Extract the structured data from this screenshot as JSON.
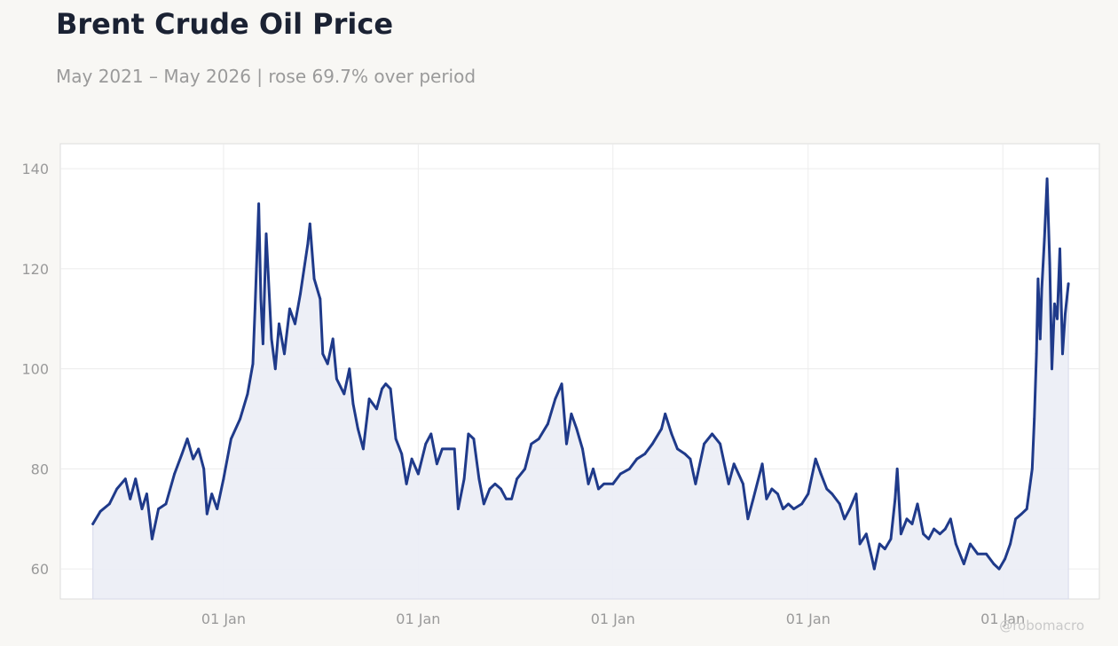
{
  "title": "Brent Crude Oil Price",
  "subtitle": "May 2021 – May 2026 | rose 69.7% over period",
  "watermark": "@robomacro",
  "colors": {
    "line": "#1f3a8a",
    "fill": "#eceef6",
    "background": "#f8f7f4",
    "grid": "#ececec"
  },
  "chart_data": {
    "type": "area",
    "title": "Brent Crude Oil Price",
    "xlabel": "",
    "ylabel": "",
    "xlim": [
      "2021-03-01",
      "2026-07-01"
    ],
    "ylim": [
      54,
      145
    ],
    "grid": true,
    "legend": "none",
    "y_ticks": [
      60,
      80,
      100,
      120,
      140
    ],
    "x_ticks": [
      {
        "date": "2022-01-01",
        "label": "01 Jan"
      },
      {
        "date": "2023-01-01",
        "label": "01 Jan"
      },
      {
        "date": "2024-01-01",
        "label": "01 Jan"
      },
      {
        "date": "2025-01-01",
        "label": "01 Jan"
      },
      {
        "date": "2026-01-01",
        "label": "01 Jan"
      }
    ],
    "series": [
      {
        "name": "",
        "points": [
          [
            "2021-05-01",
            69
          ],
          [
            "2021-05-15",
            71.5
          ],
          [
            "2021-06-01",
            73
          ],
          [
            "2021-06-15",
            76
          ],
          [
            "2021-07-01",
            78
          ],
          [
            "2021-07-10",
            74
          ],
          [
            "2021-07-20",
            78
          ],
          [
            "2021-08-01",
            72
          ],
          [
            "2021-08-10",
            75
          ],
          [
            "2021-08-20",
            66
          ],
          [
            "2021-09-01",
            72
          ],
          [
            "2021-09-15",
            73
          ],
          [
            "2021-10-01",
            79
          ],
          [
            "2021-10-15",
            83
          ],
          [
            "2021-10-25",
            86
          ],
          [
            "2021-11-05",
            82
          ],
          [
            "2021-11-15",
            84
          ],
          [
            "2021-11-25",
            80
          ],
          [
            "2021-12-01",
            71
          ],
          [
            "2021-12-10",
            75
          ],
          [
            "2021-12-20",
            72
          ],
          [
            "2022-01-01",
            78
          ],
          [
            "2022-01-15",
            86
          ],
          [
            "2022-02-01",
            90
          ],
          [
            "2022-02-15",
            95
          ],
          [
            "2022-02-25",
            101
          ],
          [
            "2022-03-01",
            112
          ],
          [
            "2022-03-08",
            133
          ],
          [
            "2022-03-12",
            114
          ],
          [
            "2022-03-16",
            105
          ],
          [
            "2022-03-22",
            127
          ],
          [
            "2022-04-01",
            106
          ],
          [
            "2022-04-08",
            100
          ],
          [
            "2022-04-15",
            109
          ],
          [
            "2022-04-25",
            103
          ],
          [
            "2022-05-05",
            112
          ],
          [
            "2022-05-15",
            109
          ],
          [
            "2022-05-25",
            115
          ],
          [
            "2022-06-01",
            120
          ],
          [
            "2022-06-08",
            125
          ],
          [
            "2022-06-12",
            129
          ],
          [
            "2022-06-20",
            118
          ],
          [
            "2022-07-01",
            114
          ],
          [
            "2022-07-06",
            103
          ],
          [
            "2022-07-15",
            101
          ],
          [
            "2022-07-25",
            106
          ],
          [
            "2022-08-01",
            98
          ],
          [
            "2022-08-15",
            95
          ],
          [
            "2022-08-25",
            100
          ],
          [
            "2022-09-01",
            93
          ],
          [
            "2022-09-10",
            88
          ],
          [
            "2022-09-20",
            84
          ],
          [
            "2022-10-01",
            94
          ],
          [
            "2022-10-15",
            92
          ],
          [
            "2022-10-25",
            96
          ],
          [
            "2022-11-01",
            97
          ],
          [
            "2022-11-10",
            96
          ],
          [
            "2022-11-20",
            86
          ],
          [
            "2022-12-01",
            83
          ],
          [
            "2022-12-10",
            77
          ],
          [
            "2022-12-20",
            82
          ],
          [
            "2023-01-01",
            79
          ],
          [
            "2023-01-15",
            85
          ],
          [
            "2023-01-25",
            87
          ],
          [
            "2023-02-05",
            81
          ],
          [
            "2023-02-15",
            84
          ],
          [
            "2023-03-01",
            84
          ],
          [
            "2023-03-10",
            84
          ],
          [
            "2023-03-17",
            72
          ],
          [
            "2023-03-28",
            78
          ],
          [
            "2023-04-05",
            87
          ],
          [
            "2023-04-15",
            86
          ],
          [
            "2023-04-25",
            78
          ],
          [
            "2023-05-04",
            73
          ],
          [
            "2023-05-15",
            76
          ],
          [
            "2023-05-25",
            77
          ],
          [
            "2023-06-05",
            76
          ],
          [
            "2023-06-15",
            74
          ],
          [
            "2023-06-25",
            74
          ],
          [
            "2023-07-05",
            78
          ],
          [
            "2023-07-20",
            80
          ],
          [
            "2023-08-01",
            85
          ],
          [
            "2023-08-15",
            86
          ],
          [
            "2023-09-01",
            89
          ],
          [
            "2023-09-15",
            94
          ],
          [
            "2023-09-27",
            97
          ],
          [
            "2023-10-06",
            85
          ],
          [
            "2023-10-15",
            91
          ],
          [
            "2023-10-25",
            88
          ],
          [
            "2023-11-05",
            84
          ],
          [
            "2023-11-16",
            77
          ],
          [
            "2023-11-25",
            80
          ],
          [
            "2023-12-05",
            76
          ],
          [
            "2023-12-15",
            77
          ],
          [
            "2024-01-01",
            77
          ],
          [
            "2024-01-15",
            79
          ],
          [
            "2024-02-01",
            80
          ],
          [
            "2024-02-15",
            82
          ],
          [
            "2024-03-01",
            83
          ],
          [
            "2024-03-15",
            85
          ],
          [
            "2024-04-01",
            88
          ],
          [
            "2024-04-08",
            91
          ],
          [
            "2024-04-20",
            87
          ],
          [
            "2024-05-01",
            84
          ],
          [
            "2024-05-15",
            83
          ],
          [
            "2024-05-25",
            82
          ],
          [
            "2024-06-04",
            77
          ],
          [
            "2024-06-20",
            85
          ],
          [
            "2024-07-05",
            87
          ],
          [
            "2024-07-20",
            85
          ],
          [
            "2024-08-05",
            77
          ],
          [
            "2024-08-15",
            81
          ],
          [
            "2024-09-01",
            77
          ],
          [
            "2024-09-10",
            70
          ],
          [
            "2024-09-20",
            74
          ],
          [
            "2024-10-07",
            81
          ],
          [
            "2024-10-15",
            74
          ],
          [
            "2024-10-25",
            76
          ],
          [
            "2024-11-05",
            75
          ],
          [
            "2024-11-15",
            72
          ],
          [
            "2024-11-25",
            73
          ],
          [
            "2024-12-05",
            72
          ],
          [
            "2024-12-20",
            73
          ],
          [
            "2025-01-01",
            75
          ],
          [
            "2025-01-15",
            82
          ],
          [
            "2025-01-25",
            79
          ],
          [
            "2025-02-05",
            76
          ],
          [
            "2025-02-15",
            75
          ],
          [
            "2025-03-01",
            73
          ],
          [
            "2025-03-10",
            70
          ],
          [
            "2025-03-20",
            72
          ],
          [
            "2025-04-01",
            75
          ],
          [
            "2025-04-08",
            65
          ],
          [
            "2025-04-20",
            67
          ],
          [
            "2025-05-01",
            62
          ],
          [
            "2025-05-05",
            60
          ],
          [
            "2025-05-15",
            65
          ],
          [
            "2025-05-25",
            64
          ],
          [
            "2025-06-05",
            66
          ],
          [
            "2025-06-13",
            74
          ],
          [
            "2025-06-17",
            80
          ],
          [
            "2025-06-24",
            67
          ],
          [
            "2025-07-05",
            70
          ],
          [
            "2025-07-15",
            69
          ],
          [
            "2025-07-25",
            73
          ],
          [
            "2025-08-05",
            67
          ],
          [
            "2025-08-15",
            66
          ],
          [
            "2025-08-25",
            68
          ],
          [
            "2025-09-05",
            67
          ],
          [
            "2025-09-15",
            68
          ],
          [
            "2025-09-25",
            70
          ],
          [
            "2025-10-05",
            65
          ],
          [
            "2025-10-20",
            61
          ],
          [
            "2025-11-01",
            65
          ],
          [
            "2025-11-15",
            63
          ],
          [
            "2025-12-01",
            63
          ],
          [
            "2025-12-15",
            61
          ],
          [
            "2025-12-25",
            60
          ],
          [
            "2026-01-05",
            62
          ],
          [
            "2026-01-15",
            65
          ],
          [
            "2026-01-25",
            70
          ],
          [
            "2026-02-05",
            71
          ],
          [
            "2026-02-15",
            72
          ],
          [
            "2026-02-25",
            80
          ],
          [
            "2026-03-01",
            90
          ],
          [
            "2026-03-05",
            103
          ],
          [
            "2026-03-08",
            118
          ],
          [
            "2026-03-12",
            106
          ],
          [
            "2026-03-15",
            116
          ],
          [
            "2026-03-20",
            126
          ],
          [
            "2026-03-25",
            138
          ],
          [
            "2026-03-30",
            121
          ],
          [
            "2026-04-03",
            100
          ],
          [
            "2026-04-08",
            113
          ],
          [
            "2026-04-13",
            110
          ],
          [
            "2026-04-18",
            124
          ],
          [
            "2026-04-23",
            103
          ],
          [
            "2026-04-28",
            111
          ],
          [
            "2026-05-04",
            117
          ]
        ]
      }
    ]
  }
}
